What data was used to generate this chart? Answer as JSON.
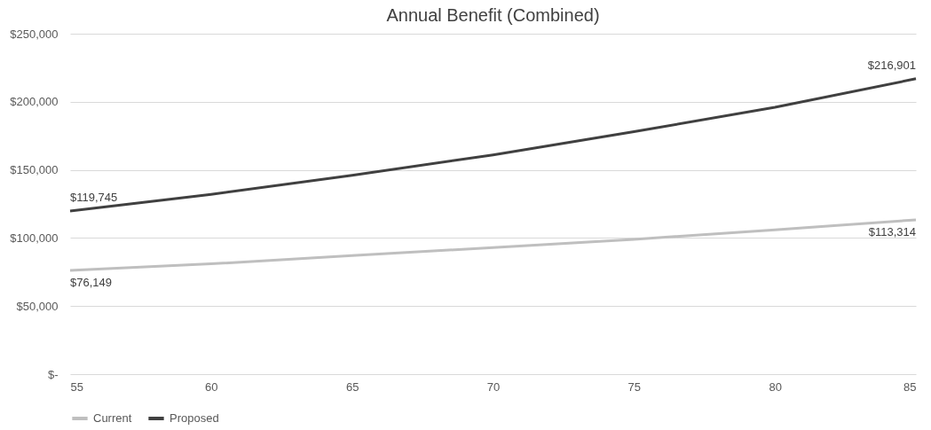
{
  "chart_data": {
    "type": "line",
    "title": "Annual Benefit (Combined)",
    "x": [
      55,
      60,
      65,
      70,
      75,
      80,
      85
    ],
    "series": [
      {
        "name": "Current",
        "color": "#bfbfbf",
        "values": [
          76149,
          81000,
          87000,
          93000,
          99000,
          106000,
          113314
        ],
        "value_labels": [
          "$76,149",
          null,
          null,
          null,
          null,
          null,
          "$113,314"
        ]
      },
      {
        "name": "Proposed",
        "color": "#404040",
        "values": [
          119745,
          132000,
          146000,
          161000,
          178000,
          196000,
          216901
        ],
        "value_labels": [
          "$119,745",
          null,
          null,
          null,
          null,
          null,
          "$216,901"
        ]
      }
    ],
    "xlim": [
      55,
      85
    ],
    "xticks": [
      55,
      60,
      65,
      70,
      75,
      80,
      85
    ],
    "ylim": [
      0,
      250000
    ],
    "yticks": [
      {
        "value": 0,
        "label": "$-"
      },
      {
        "value": 50000,
        "label": "$50,000"
      },
      {
        "value": 100000,
        "label": "$100,000"
      },
      {
        "value": 150000,
        "label": "$150,000"
      },
      {
        "value": 200000,
        "label": "$200,000"
      },
      {
        "value": 250000,
        "label": "$250,000"
      }
    ],
    "grid": "y",
    "legend": "bottom",
    "marker": "none",
    "line_style": "solid"
  }
}
